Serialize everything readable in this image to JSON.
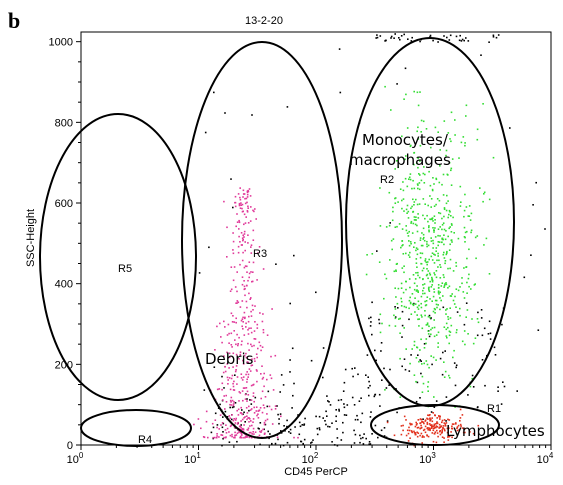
{
  "panel_label": "b",
  "chart_data": {
    "type": "scatter",
    "title": "13-2-20",
    "xlabel": "CD45 PerCP",
    "ylabel": "SSC-Height",
    "x_scale": "log",
    "xlim": [
      1,
      10000
    ],
    "ylim": [
      0,
      1024
    ],
    "x_ticks": [
      {
        "value": 1,
        "base": "10",
        "exp": "0"
      },
      {
        "value": 10,
        "base": "10",
        "exp": "1"
      },
      {
        "value": 100,
        "base": "10",
        "exp": "2"
      },
      {
        "value": 1000,
        "base": "10",
        "exp": "3"
      },
      {
        "value": 10000,
        "base": "10",
        "exp": "4"
      }
    ],
    "y_ticks": [
      {
        "value": 0,
        "label": "0"
      },
      {
        "value": 200,
        "label": "200"
      },
      {
        "value": 400,
        "label": "400"
      },
      {
        "value": 600,
        "label": "600"
      },
      {
        "value": 800,
        "label": "800"
      },
      {
        "value": 1000,
        "label": "1000"
      }
    ],
    "regions": [
      {
        "id": "R1",
        "color": "#e2301c",
        "count": 200,
        "x_center_log": 2.97,
        "y_center": 45,
        "x_spread_log": 0.14,
        "y_spread": 16
      },
      {
        "id": "R2",
        "color": "#33dd33",
        "count": 650,
        "x_center_log": 2.98,
        "y_center": 460,
        "x_spread_log": 0.2,
        "y_spread": 220
      },
      {
        "id": "R3",
        "color": "#e03a9a",
        "count": 500,
        "x_center_log": 1.38,
        "y_center": 260,
        "x_spread_log": 0.15,
        "y_spread": 200
      },
      {
        "id": "R4",
        "color": "#000000",
        "count": 0
      },
      {
        "id": "R5",
        "color": "#000000",
        "count": 0
      }
    ],
    "background_events": {
      "color": "#000000",
      "count": 360
    },
    "gate_labels": [
      "R1",
      "R2",
      "R3",
      "R4",
      "R5"
    ],
    "annotations": [
      {
        "text": "Monocytes/",
        "target": "R2"
      },
      {
        "text": "macrophages",
        "target": "R2"
      },
      {
        "text": "Debris",
        "target": "R3"
      },
      {
        "text": "Lymphocytes",
        "target": "R1"
      }
    ]
  }
}
